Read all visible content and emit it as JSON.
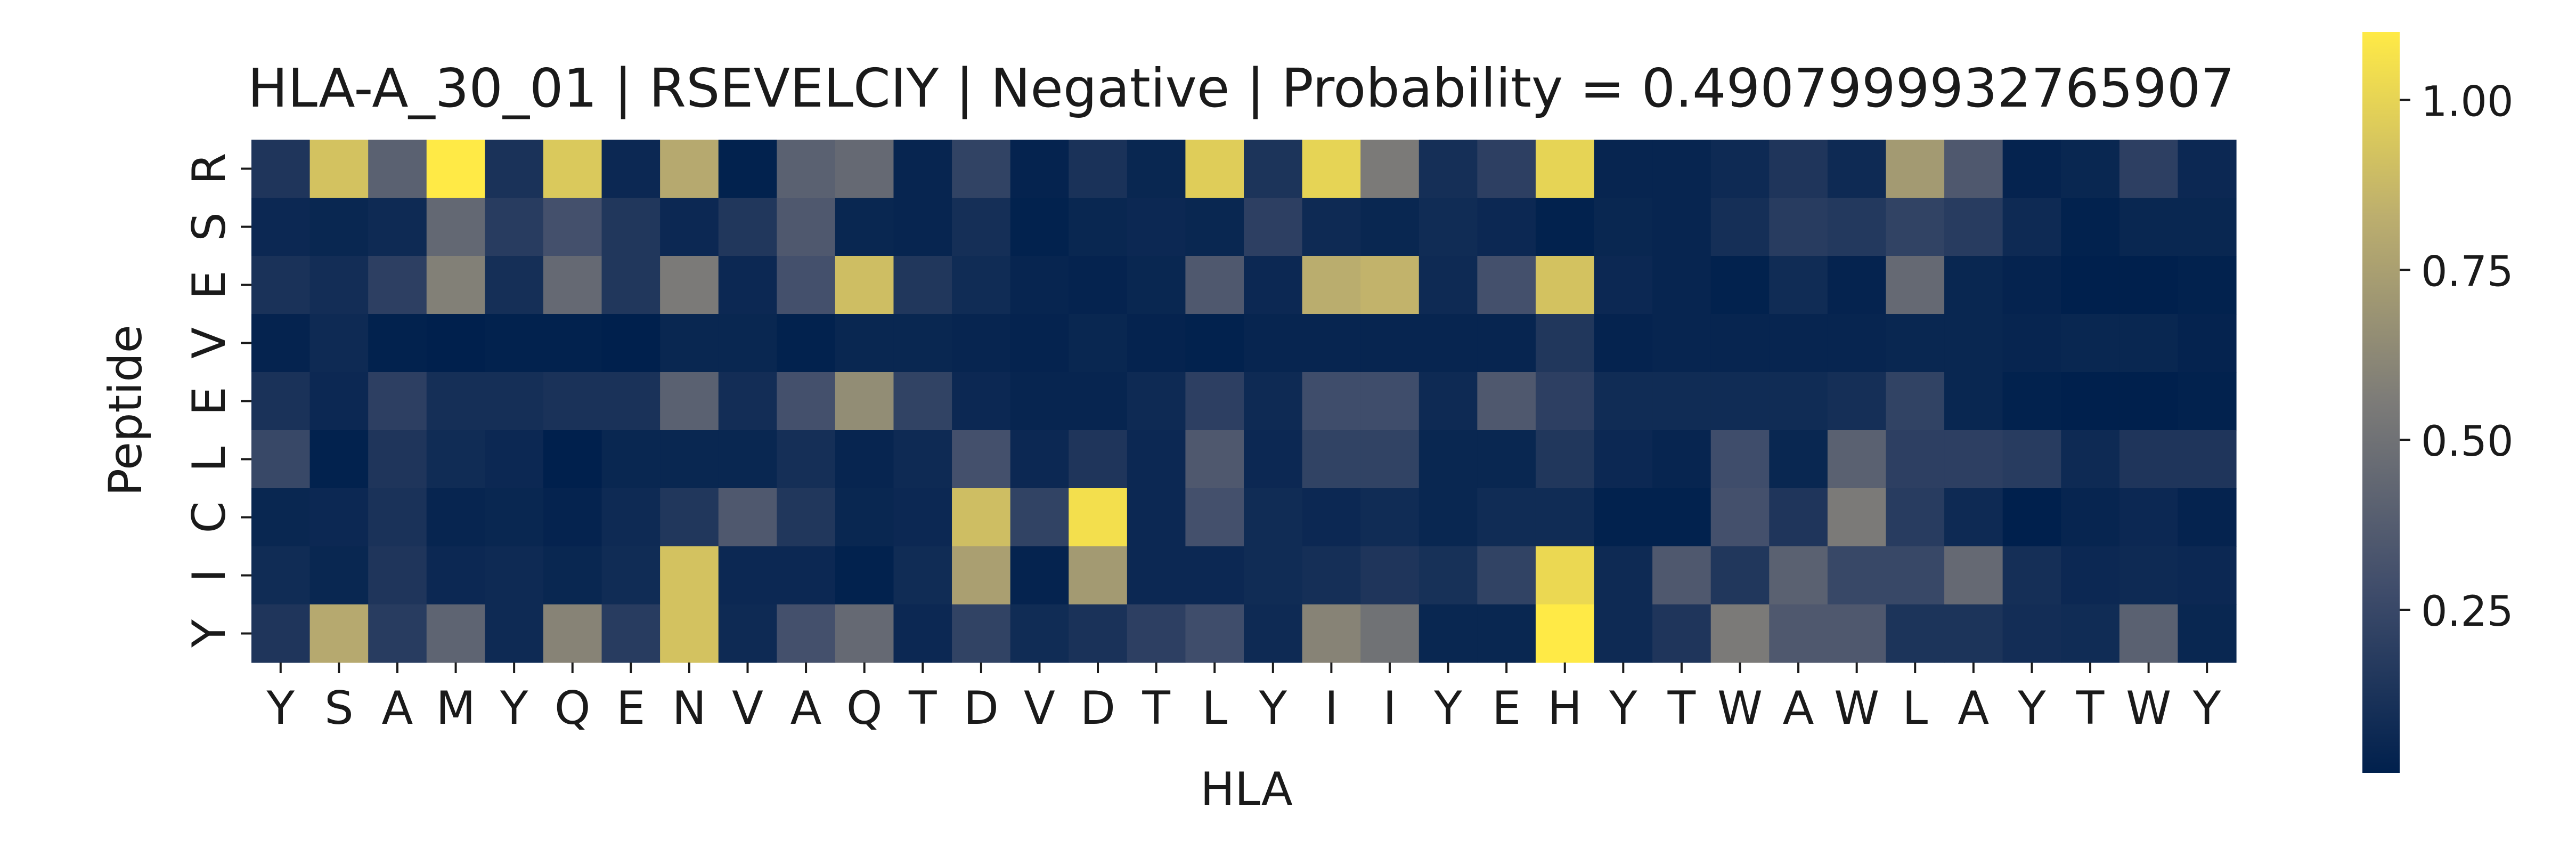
{
  "chart_data": {
    "type": "heatmap",
    "title": "HLA-A_30_01 | RSEVELCIY | Negative | Probability = 0.4907999932765907",
    "xlabel": "HLA",
    "ylabel": "Peptide",
    "x_categories": [
      "Y",
      "S",
      "A",
      "M",
      "Y",
      "Q",
      "E",
      "N",
      "V",
      "A",
      "Q",
      "T",
      "D",
      "V",
      "D",
      "T",
      "L",
      "Y",
      "I",
      "I",
      "Y",
      "E",
      "H",
      "Y",
      "T",
      "W",
      "A",
      "W",
      "L",
      "A",
      "Y",
      "T",
      "W",
      "Y"
    ],
    "y_categories": [
      "R",
      "S",
      "E",
      "V",
      "E",
      "L",
      "C",
      "I",
      "Y"
    ],
    "values": [
      [
        0.14,
        0.92,
        0.4,
        1.1,
        0.12,
        0.95,
        0.06,
        0.8,
        0.02,
        0.4,
        0.45,
        0.04,
        0.22,
        0.03,
        0.12,
        0.05,
        0.97,
        0.13,
        1.0,
        0.55,
        0.1,
        0.2,
        1.0,
        0.04,
        0.04,
        0.07,
        0.14,
        0.07,
        0.72,
        0.35,
        0.03,
        0.05,
        0.2,
        0.06
      ],
      [
        0.06,
        0.05,
        0.07,
        0.44,
        0.18,
        0.3,
        0.15,
        0.06,
        0.15,
        0.35,
        0.05,
        0.04,
        0.1,
        0.02,
        0.05,
        0.06,
        0.05,
        0.2,
        0.07,
        0.05,
        0.08,
        0.06,
        0.02,
        0.05,
        0.04,
        0.1,
        0.18,
        0.16,
        0.22,
        0.18,
        0.07,
        0.02,
        0.05,
        0.05
      ],
      [
        0.12,
        0.09,
        0.2,
        0.58,
        0.1,
        0.45,
        0.15,
        0.55,
        0.06,
        0.3,
        0.9,
        0.15,
        0.08,
        0.04,
        0.03,
        0.05,
        0.35,
        0.06,
        0.82,
        0.85,
        0.07,
        0.3,
        0.92,
        0.06,
        0.04,
        0.02,
        0.08,
        0.03,
        0.45,
        0.05,
        0.03,
        0.01,
        0.01,
        0.02
      ],
      [
        0.03,
        0.07,
        0.02,
        0.01,
        0.02,
        0.02,
        0.01,
        0.05,
        0.05,
        0.02,
        0.05,
        0.05,
        0.04,
        0.03,
        0.05,
        0.03,
        0.02,
        0.04,
        0.04,
        0.04,
        0.04,
        0.04,
        0.15,
        0.03,
        0.04,
        0.04,
        0.04,
        0.04,
        0.05,
        0.05,
        0.04,
        0.05,
        0.05,
        0.03
      ],
      [
        0.12,
        0.06,
        0.2,
        0.1,
        0.1,
        0.12,
        0.12,
        0.4,
        0.09,
        0.3,
        0.65,
        0.22,
        0.06,
        0.04,
        0.04,
        0.07,
        0.2,
        0.07,
        0.28,
        0.28,
        0.07,
        0.35,
        0.2,
        0.08,
        0.08,
        0.08,
        0.08,
        0.1,
        0.22,
        0.05,
        0.02,
        0.01,
        0.01,
        0.02
      ],
      [
        0.25,
        0.02,
        0.14,
        0.08,
        0.06,
        0.01,
        0.05,
        0.05,
        0.05,
        0.1,
        0.04,
        0.07,
        0.3,
        0.06,
        0.14,
        0.06,
        0.35,
        0.06,
        0.22,
        0.22,
        0.05,
        0.05,
        0.15,
        0.06,
        0.04,
        0.28,
        0.05,
        0.4,
        0.2,
        0.2,
        0.18,
        0.07,
        0.14,
        0.14
      ],
      [
        0.05,
        0.06,
        0.12,
        0.04,
        0.05,
        0.03,
        0.07,
        0.15,
        0.35,
        0.15,
        0.05,
        0.06,
        0.9,
        0.22,
        1.05,
        0.06,
        0.3,
        0.08,
        0.06,
        0.08,
        0.05,
        0.08,
        0.08,
        0.02,
        0.02,
        0.3,
        0.14,
        0.55,
        0.18,
        0.07,
        0.01,
        0.04,
        0.06,
        0.03
      ],
      [
        0.08,
        0.05,
        0.14,
        0.06,
        0.07,
        0.05,
        0.08,
        0.92,
        0.06,
        0.06,
        0.02,
        0.08,
        0.75,
        0.03,
        0.72,
        0.06,
        0.06,
        0.08,
        0.1,
        0.14,
        0.11,
        0.22,
        1.02,
        0.07,
        0.35,
        0.15,
        0.4,
        0.25,
        0.25,
        0.45,
        0.1,
        0.06,
        0.07,
        0.06
      ],
      [
        0.14,
        0.8,
        0.18,
        0.42,
        0.07,
        0.6,
        0.18,
        0.92,
        0.07,
        0.3,
        0.45,
        0.06,
        0.22,
        0.08,
        0.12,
        0.2,
        0.28,
        0.07,
        0.6,
        0.5,
        0.05,
        0.05,
        1.1,
        0.07,
        0.14,
        0.55,
        0.35,
        0.35,
        0.13,
        0.13,
        0.09,
        0.08,
        0.4,
        0.05
      ]
    ],
    "colorbar": {
      "colormap": "cividis",
      "vmin": 0.01,
      "vmax": 1.1,
      "ticks": [
        0.25,
        0.5,
        0.75,
        1.0
      ],
      "tick_labels": [
        "0.25",
        "0.50",
        "0.75",
        "1.00"
      ]
    },
    "grid": false,
    "legend": "colorbar-right"
  }
}
